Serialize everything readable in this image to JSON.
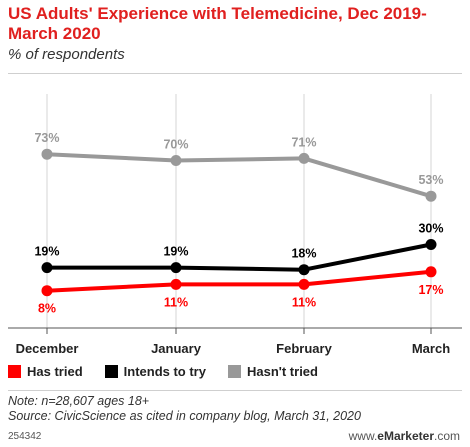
{
  "title": "US Adults' Experience with Telemedicine, Dec 2019-March 2020",
  "subtitle": "% of respondents",
  "chart_data": {
    "type": "line",
    "categories": [
      "December",
      "January",
      "February",
      "March"
    ],
    "series": [
      {
        "name": "Has tried",
        "color": "#ff0000",
        "values": [
          8,
          11,
          11,
          17
        ],
        "label_position": "below"
      },
      {
        "name": "Intends to try",
        "color": "#000000",
        "values": [
          19,
          19,
          18,
          30
        ],
        "label_position": "above"
      },
      {
        "name": "Hasn't tried",
        "color": "#999999",
        "values": [
          73,
          70,
          71,
          53
        ],
        "label_position": "above"
      }
    ],
    "value_suffix": "%",
    "grid": "vertical gridlines at each category",
    "legend": "bottom-left"
  },
  "note": "Note: n=28,607 ages 18+",
  "source": "Source: CivicScience as cited in company blog, March 31, 2020",
  "footer_id": "254342",
  "brand": {
    "prefix": "www.",
    "name": "eMarketer",
    "suffix": ".com"
  }
}
